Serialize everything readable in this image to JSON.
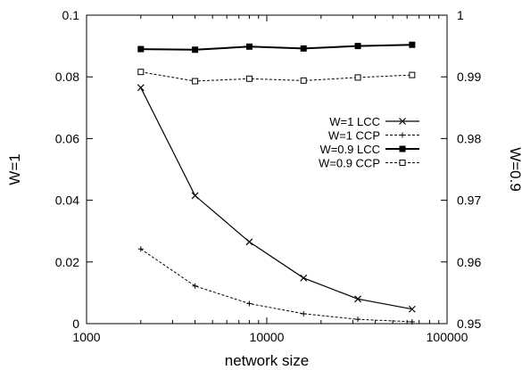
{
  "chart_data": {
    "type": "line",
    "title": "",
    "xlabel": "network size",
    "ylabel_left": "W=1",
    "ylabel_right": "W=0.9",
    "xscale": "log",
    "xlim": [
      1000,
      100000
    ],
    "ylim_left": [
      0,
      0.1
    ],
    "ylim_right": [
      0.95,
      1.0
    ],
    "x_ticks": [
      "1000",
      "10000",
      "100000"
    ],
    "y_left_ticks": [
      "0",
      "0.02",
      "0.04",
      "0.06",
      "0.08",
      "0.1"
    ],
    "y_right_ticks": [
      "0.95",
      "0.96",
      "0.97",
      "0.98",
      "0.99",
      "1"
    ],
    "grid": false,
    "legend_position": "center-right",
    "x": [
      2000,
      4000,
      8000,
      16000,
      32000,
      64000
    ],
    "series": [
      {
        "name": "W=1 LCC",
        "axis": "left",
        "marker": "x",
        "line": "solid",
        "values": [
          0.0765,
          0.0415,
          0.0265,
          0.0148,
          0.008,
          0.0047
        ]
      },
      {
        "name": "W=1 CCP",
        "axis": "left",
        "marker": "plus",
        "line": "dashed",
        "values": [
          0.0242,
          0.0122,
          0.0065,
          0.0032,
          0.0014,
          0.0006
        ]
      },
      {
        "name": "W=0.9 LCC",
        "axis": "right",
        "marker": "filled-square",
        "line": "solid",
        "values": [
          0.9945,
          0.9944,
          0.9949,
          0.9946,
          0.995,
          0.9952
        ]
      },
      {
        "name": "W=0.9 CCP",
        "axis": "right",
        "marker": "open-square",
        "line": "dashed",
        "values": [
          0.9908,
          0.9893,
          0.9897,
          0.9894,
          0.9899,
          0.9903
        ]
      }
    ]
  }
}
